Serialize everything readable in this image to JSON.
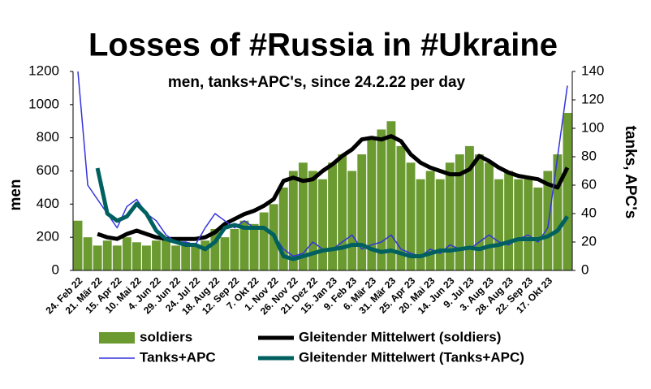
{
  "chart_data": {
    "type": "combo",
    "title": "Losses of #Russia in #Ukraine",
    "subtitle": "men, tanks+APC's, since 24.2.22 per day",
    "y_label": "men",
    "y2_label": "tanks, APC's",
    "categories": [
      "24. Feb 22",
      null,
      "21. Mär 22",
      null,
      "15. Apr 22",
      null,
      "10. Mai 22",
      null,
      "4. Jun 22",
      null,
      "29. Jun 22",
      null,
      "24. Jul 22",
      null,
      "18. Aug 22",
      null,
      "12. Sep 22",
      null,
      "7. Okt 22",
      null,
      "1. Nov 22",
      null,
      "26. Nov 22",
      null,
      "21. Dez 22",
      null,
      "15. Jan 23",
      null,
      "9. Feb 23",
      null,
      "6. Mär 23",
      null,
      "31. Mär 23",
      null,
      "25. Apr 23",
      null,
      "20. Mai 23",
      null,
      "14. Jun 23",
      null,
      "9. Jul 23",
      null,
      "3. Aug 23",
      null,
      "28. Aug 23",
      null,
      "22. Sep 23",
      null,
      "17. Okt 23",
      null,
      null
    ],
    "ylim": [
      0,
      1200
    ],
    "yticks": [
      0,
      200,
      400,
      600,
      800,
      1000,
      1200
    ],
    "y2lim": [
      0,
      140
    ],
    "y2ticks": [
      0,
      20,
      40,
      60,
      80,
      100,
      120,
      140
    ],
    "series": [
      {
        "name": "soldiers",
        "type": "bar",
        "color": "#6a9a30",
        "values": [
          300,
          200,
          150,
          180,
          150,
          200,
          170,
          150,
          180,
          200,
          150,
          170,
          150,
          180,
          250,
          200,
          250,
          300,
          280,
          350,
          400,
          500,
          600,
          650,
          600,
          550,
          650,
          700,
          600,
          700,
          800,
          850,
          900,
          750,
          650,
          550,
          600,
          550,
          650,
          700,
          750,
          700,
          650,
          550,
          600,
          550,
          550,
          500,
          600,
          700,
          950
        ]
      },
      {
        "name": "Gleitender Mittelwert (soldiers)",
        "type": "line",
        "color": "#000000",
        "values": [
          null,
          null,
          220,
          200,
          190,
          220,
          240,
          220,
          200,
          190,
          190,
          190,
          190,
          200,
          230,
          280,
          310,
          340,
          360,
          390,
          430,
          540,
          560,
          540,
          550,
          600,
          640,
          690,
          730,
          790,
          800,
          790,
          810,
          780,
          700,
          650,
          620,
          600,
          580,
          580,
          610,
          690,
          660,
          620,
          590,
          570,
          560,
          550,
          520,
          500,
          620
        ]
      },
      {
        "name": "Tanks+APC",
        "type": "line",
        "axis": "y2",
        "color": "#3333dd",
        "values": [
          140,
          60,
          50,
          40,
          30,
          45,
          50,
          40,
          35,
          25,
          20,
          20,
          18,
          30,
          40,
          35,
          30,
          35,
          30,
          30,
          25,
          15,
          10,
          12,
          20,
          15,
          15,
          20,
          25,
          15,
          18,
          20,
          25,
          15,
          12,
          10,
          15,
          12,
          18,
          15,
          15,
          20,
          25,
          20,
          18,
          22,
          25,
          20,
          30,
          80,
          130
        ]
      },
      {
        "name": "Gleitender Mittelwert (Tanks+APC)",
        "type": "line",
        "axis": "y2",
        "color": "#006060",
        "values": [
          null,
          null,
          72,
          40,
          35,
          38,
          47,
          40,
          28,
          22,
          20,
          18,
          18,
          15,
          20,
          30,
          32,
          30,
          30,
          30,
          25,
          10,
          8,
          10,
          12,
          14,
          15,
          16,
          18,
          18,
          15,
          13,
          14,
          12,
          10,
          10,
          12,
          14,
          14,
          15,
          16,
          15,
          17,
          18,
          20,
          22,
          22,
          22,
          24,
          28,
          38
        ]
      }
    ]
  }
}
